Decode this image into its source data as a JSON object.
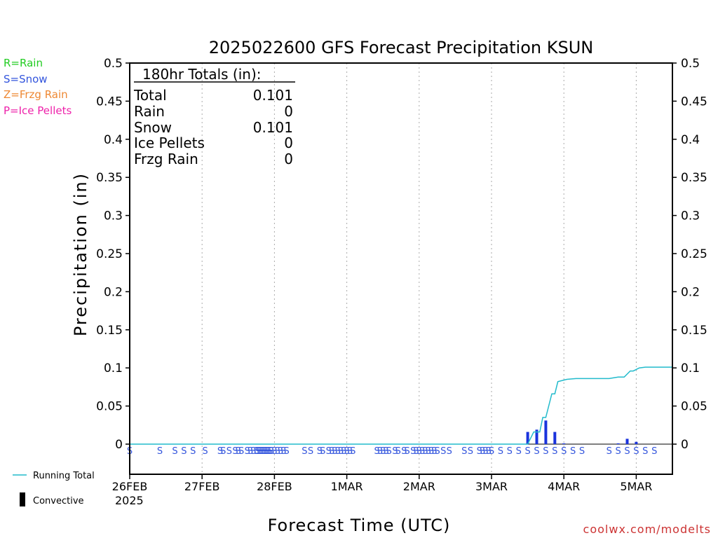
{
  "title": "2025022600 GFS Forecast Precipitation KSUN",
  "legend_keys": [
    {
      "text": "R=Rain",
      "color": "#22cc22"
    },
    {
      "text": "S=Snow",
      "color": "#3355dd"
    },
    {
      "text": "Z=Frzg Rain",
      "color": "#ee8833"
    },
    {
      "text": "P=Ice Pellets",
      "color": "#ee22aa"
    }
  ],
  "totals": {
    "heading": "180hr Totals (in):",
    "rows": [
      {
        "label": "Total",
        "value": "0.101"
      },
      {
        "label": "Rain",
        "value": "0"
      },
      {
        "label": "Snow",
        "value": "0.101"
      },
      {
        "label": "Ice Pellets",
        "value": "0"
      },
      {
        "label": "Frzg Rain",
        "value": "0"
      }
    ]
  },
  "line_legend": {
    "running_total": "Running Total",
    "convective": "Convective"
  },
  "credit": "coolwx.com/modelts",
  "colors": {
    "running_total": "#22bbcc",
    "bars": "#1a33dd",
    "snow": "#3355dd",
    "grid": "#aaaaaa",
    "credit": "#cc3333"
  },
  "chart_data": {
    "type": "bar",
    "ylabel": "Precipitation (in)",
    "xlabel": "Forecast Time (UTC)",
    "ylim": [
      0,
      0.5
    ],
    "yticks": [
      "0.5",
      "0.45",
      "0.4",
      "0.35",
      "0.3",
      "0.25",
      "0.2",
      "0.15",
      "0.1",
      "0.05",
      "0"
    ],
    "xlim_hours": [
      0,
      180
    ],
    "xticks": [
      {
        "label": "26FEB",
        "hour": 0
      },
      {
        "label": "27FEB",
        "hour": 24
      },
      {
        "label": "28FEB",
        "hour": 48
      },
      {
        "label": "1MAR",
        "hour": 72
      },
      {
        "label": "2MAR",
        "hour": 96
      },
      {
        "label": "3MAR",
        "hour": 120
      },
      {
        "label": "4MAR",
        "hour": 144
      },
      {
        "label": "5MAR",
        "hour": 168
      }
    ],
    "year_label": "2025",
    "grid": "vertical-dotted",
    "bars": {
      "name": "3hr precip",
      "hours": [
        132,
        135,
        138,
        141,
        144,
        147,
        150,
        153,
        156,
        159,
        162,
        165,
        168,
        171,
        174,
        177
      ],
      "values": [
        0.016,
        0.019,
        0.031,
        0.016,
        0.001,
        0,
        0,
        0,
        0,
        0,
        0.001,
        0.007,
        0.003,
        0,
        0,
        0
      ]
    },
    "running_total": {
      "name": "Running Total",
      "hours": [
        0,
        132,
        134,
        136,
        137,
        138,
        140,
        141,
        142,
        145,
        148,
        150,
        152,
        154,
        159,
        162,
        164,
        166,
        167,
        169,
        171,
        180
      ],
      "values": [
        0,
        0,
        0.016,
        0.016,
        0.035,
        0.035,
        0.066,
        0.066,
        0.082,
        0.085,
        0.086,
        0.086,
        0.086,
        0.086,
        0.086,
        0.088,
        0.088,
        0.096,
        0.096,
        0.1,
        0.101,
        0.101
      ]
    },
    "ptype_markers": {
      "symbol": "S",
      "hours": [
        0,
        10,
        15,
        18,
        21,
        25,
        30,
        31,
        33,
        35,
        36,
        37,
        39,
        40,
        41,
        42,
        42.5,
        43,
        43.5,
        44,
        44.5,
        45,
        45.5,
        46,
        46.5,
        47,
        48,
        49,
        50,
        51,
        52,
        58,
        60,
        63,
        64,
        66,
        67,
        68,
        69,
        70,
        71,
        72,
        73,
        74,
        82,
        83,
        84,
        85,
        86,
        88,
        89,
        91,
        92,
        94,
        95,
        96,
        97,
        98,
        99,
        100,
        101,
        102,
        104,
        106,
        111,
        113,
        116,
        117,
        118,
        119,
        120,
        123,
        126,
        129,
        132,
        135,
        138,
        141,
        144,
        147,
        150,
        159,
        162,
        165,
        168,
        171,
        174
      ]
    }
  }
}
